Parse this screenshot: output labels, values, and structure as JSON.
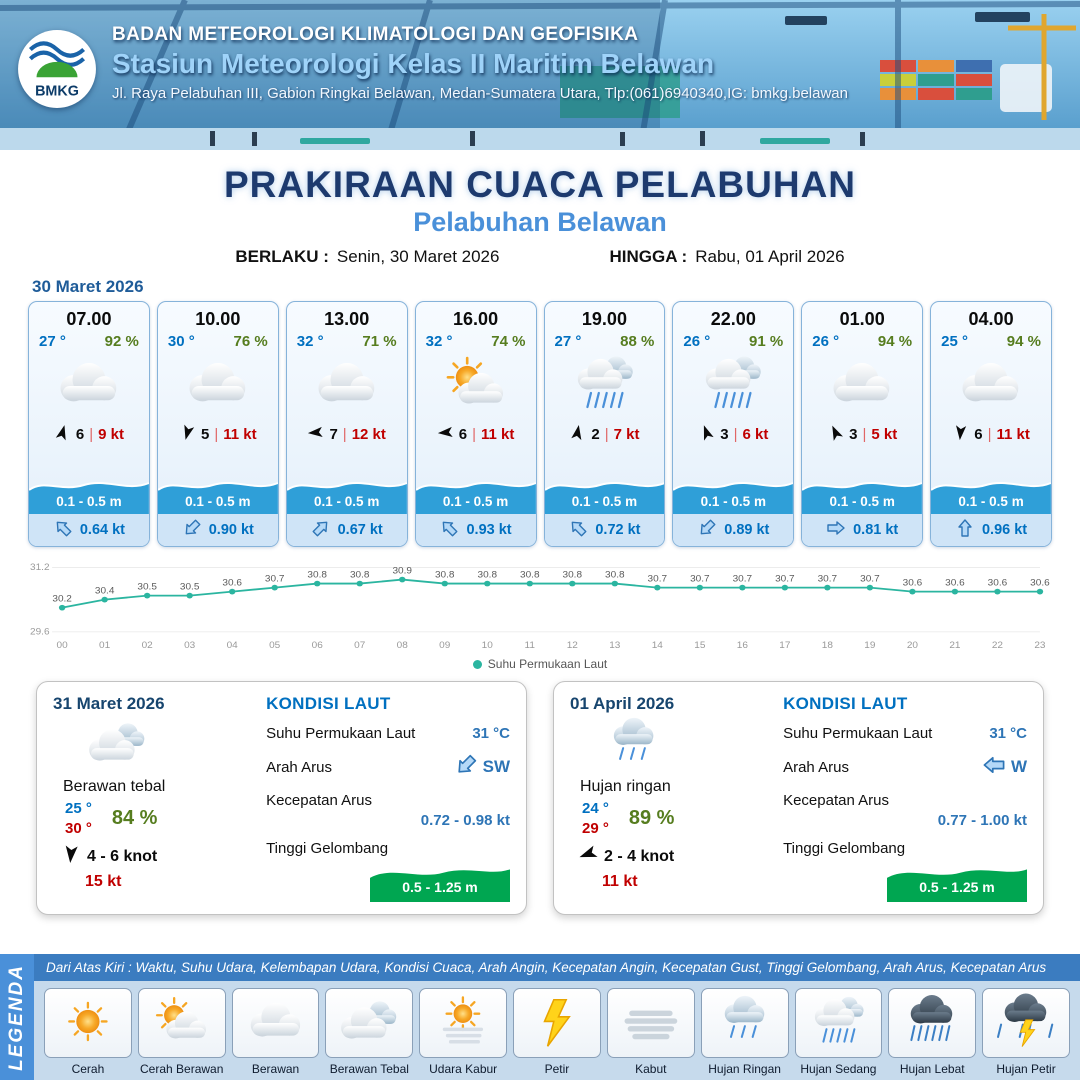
{
  "colors": {
    "temp_blue": "#0070c0",
    "humidity_green": "#567d1f",
    "gust_red": "#c00000",
    "wave_band_blue": "#2f9fd8",
    "wave_band_green": "#00a651",
    "title_navy": "#1d3a6e",
    "subtitle_blue": "#4a90d9"
  },
  "header": {
    "logo_text": "BMKG",
    "org_name": "BADAN METEOROLOGI KLIMATOLOGI DAN GEOFISIKA",
    "station_name": "Stasiun Meteorologi Kelas II Maritim Belawan",
    "address": "Jl. Raya Pelabuhan III, Gabion Ringkai Belawan, Medan-Sumatera Utara, Tlp:(061)6940340,IG: bmkg.belawan"
  },
  "title": {
    "main": "PRAKIRAAN CUACA PELABUHAN",
    "subtitle": "Pelabuhan Belawan",
    "valid_from_label": "BERLAKU :",
    "valid_from": "Senin, 30 Maret 2026",
    "valid_to_label": "HINGGA :",
    "valid_to": "Rabu, 01 April 2026"
  },
  "forecast": {
    "date": "30 Maret 2026",
    "cards": [
      {
        "time": "07.00",
        "temp": "27 °",
        "humidity": "92 %",
        "icon": "berawan",
        "wind_deg": 15,
        "wind_speed": "6",
        "gust": "9 kt",
        "wave": "0.1 - 0.5 m",
        "current_deg": 315,
        "current_speed": "0.64 kt"
      },
      {
        "time": "10.00",
        "temp": "30 °",
        "humidity": "76 %",
        "icon": "berawan",
        "wind_deg": 195,
        "wind_speed": "5",
        "gust": "11 kt",
        "wave": "0.1 - 0.5 m",
        "current_deg": 225,
        "current_speed": "0.90 kt"
      },
      {
        "time": "13.00",
        "temp": "32 °",
        "humidity": "71 %",
        "icon": "berawan",
        "wind_deg": 265,
        "wind_speed": "7",
        "gust": "12 kt",
        "wave": "0.1 - 0.5 m",
        "current_deg": 45,
        "current_speed": "0.67 kt"
      },
      {
        "time": "16.00",
        "temp": "32 °",
        "humidity": "74 %",
        "icon": "cerah-berawan",
        "wind_deg": 265,
        "wind_speed": "6",
        "gust": "11 kt",
        "wave": "0.1 - 0.5 m",
        "current_deg": 315,
        "current_speed": "0.93 kt"
      },
      {
        "time": "19.00",
        "temp": "27 °",
        "humidity": "88 %",
        "icon": "hujan-sedang",
        "wind_deg": 10,
        "wind_speed": "2",
        "gust": "7 kt",
        "wave": "0.1 - 0.5 m",
        "current_deg": 315,
        "current_speed": "0.72 kt"
      },
      {
        "time": "22.00",
        "temp": "26 °",
        "humidity": "91 %",
        "icon": "hujan-sedang",
        "wind_deg": 340,
        "wind_speed": "3",
        "gust": "6 kt",
        "wave": "0.1 - 0.5 m",
        "current_deg": 225,
        "current_speed": "0.89 kt"
      },
      {
        "time": "01.00",
        "temp": "26 °",
        "humidity": "94 %",
        "icon": "berawan",
        "wind_deg": 335,
        "wind_speed": "3",
        "gust": "5 kt",
        "wave": "0.1 - 0.5 m",
        "current_deg": 90,
        "current_speed": "0.81 kt"
      },
      {
        "time": "04.00",
        "temp": "25 °",
        "humidity": "94 %",
        "icon": "berawan",
        "wind_deg": 185,
        "wind_speed": "6",
        "gust": "11 kt",
        "wave": "0.1 - 0.5 m",
        "current_deg": 0,
        "current_speed": "0.96 kt"
      }
    ]
  },
  "chart_data": {
    "type": "line",
    "series_name": "Suhu Permukaan Laut",
    "x": [
      "00",
      "01",
      "02",
      "03",
      "04",
      "05",
      "06",
      "07",
      "08",
      "09",
      "10",
      "11",
      "12",
      "13",
      "14",
      "15",
      "16",
      "17",
      "18",
      "19",
      "20",
      "21",
      "22",
      "23"
    ],
    "values": [
      30.2,
      30.4,
      30.5,
      30.5,
      30.6,
      30.7,
      30.8,
      30.8,
      30.9,
      30.8,
      30.8,
      30.8,
      30.8,
      30.8,
      30.7,
      30.7,
      30.7,
      30.7,
      30.7,
      30.7,
      30.6,
      30.6,
      30.6,
      30.6
    ],
    "ylim": [
      29.6,
      31.2
    ],
    "line_color": "#2bb5a0",
    "grid": "minimal",
    "legend_position": "bottom"
  },
  "outlook": [
    {
      "date": "31 Maret 2026",
      "icon": "berawan-tebal",
      "condition": "Berawan tebal",
      "temp_min": "25 °",
      "temp_max": "30 °",
      "humidity": "84 %",
      "wind_deg": 185,
      "wind_range": "4  - 6 knot",
      "gust": "15 kt",
      "sea": {
        "heading": "KONDISI LAUT",
        "sst_label": "Suhu Permukaan Laut",
        "sst_value": "31 °C",
        "current_dir_label": "Arah Arus",
        "current_dir_deg": 225,
        "current_dir_text": "SW",
        "current_speed_label": "Kecepatan Arus",
        "current_speed_value": "0.72 - 0.98 kt",
        "wave_label": "Tinggi Gelombang",
        "wave_value": "0.5 - 1.25 m"
      }
    },
    {
      "date": "01 April 2026",
      "icon": "hujan-ringan",
      "condition": "Hujan ringan",
      "temp_min": "24 °",
      "temp_max": "29 °",
      "humidity": "89 %",
      "wind_deg": 250,
      "wind_range": "2  - 4 knot",
      "gust": "11 kt",
      "sea": {
        "heading": "KONDISI LAUT",
        "sst_label": "Suhu Permukaan Laut",
        "sst_value": "31 °C",
        "current_dir_label": "Arah Arus",
        "current_dir_deg": 270,
        "current_dir_text": "W",
        "current_speed_label": "Kecepatan Arus",
        "current_speed_value": "0.77  - 1.00 kt",
        "wave_label": "Tinggi Gelombang",
        "wave_value": "0.5 - 1.25 m"
      }
    }
  ],
  "legend": {
    "vertical_label": "LEGENDA",
    "caption": "Dari Atas Kiri : Waktu, Suhu Udara, Kelembapan Udara, Kondisi Cuaca, Arah Angin, Kecepatan Angin, Kecepatan Gust, Tinggi Gelombang, Arah Arus, Kecepatan Arus",
    "items": [
      {
        "label": "Cerah",
        "icon": "cerah"
      },
      {
        "label": "Cerah Berawan",
        "icon": "cerah-berawan"
      },
      {
        "label": "Berawan",
        "icon": "berawan"
      },
      {
        "label": "Berawan Tebal",
        "icon": "berawan-tebal"
      },
      {
        "label": "Udara Kabur",
        "icon": "udara-kabur"
      },
      {
        "label": "Petir",
        "icon": "petir"
      },
      {
        "label": "Kabut",
        "icon": "kabut"
      },
      {
        "label": "Hujan Ringan",
        "icon": "hujan-ringan"
      },
      {
        "label": "Hujan Sedang",
        "icon": "hujan-sedang"
      },
      {
        "label": "Hujan Lebat",
        "icon": "hujan-lebat"
      },
      {
        "label": "Hujan Petir",
        "icon": "hujan-petir"
      }
    ]
  }
}
